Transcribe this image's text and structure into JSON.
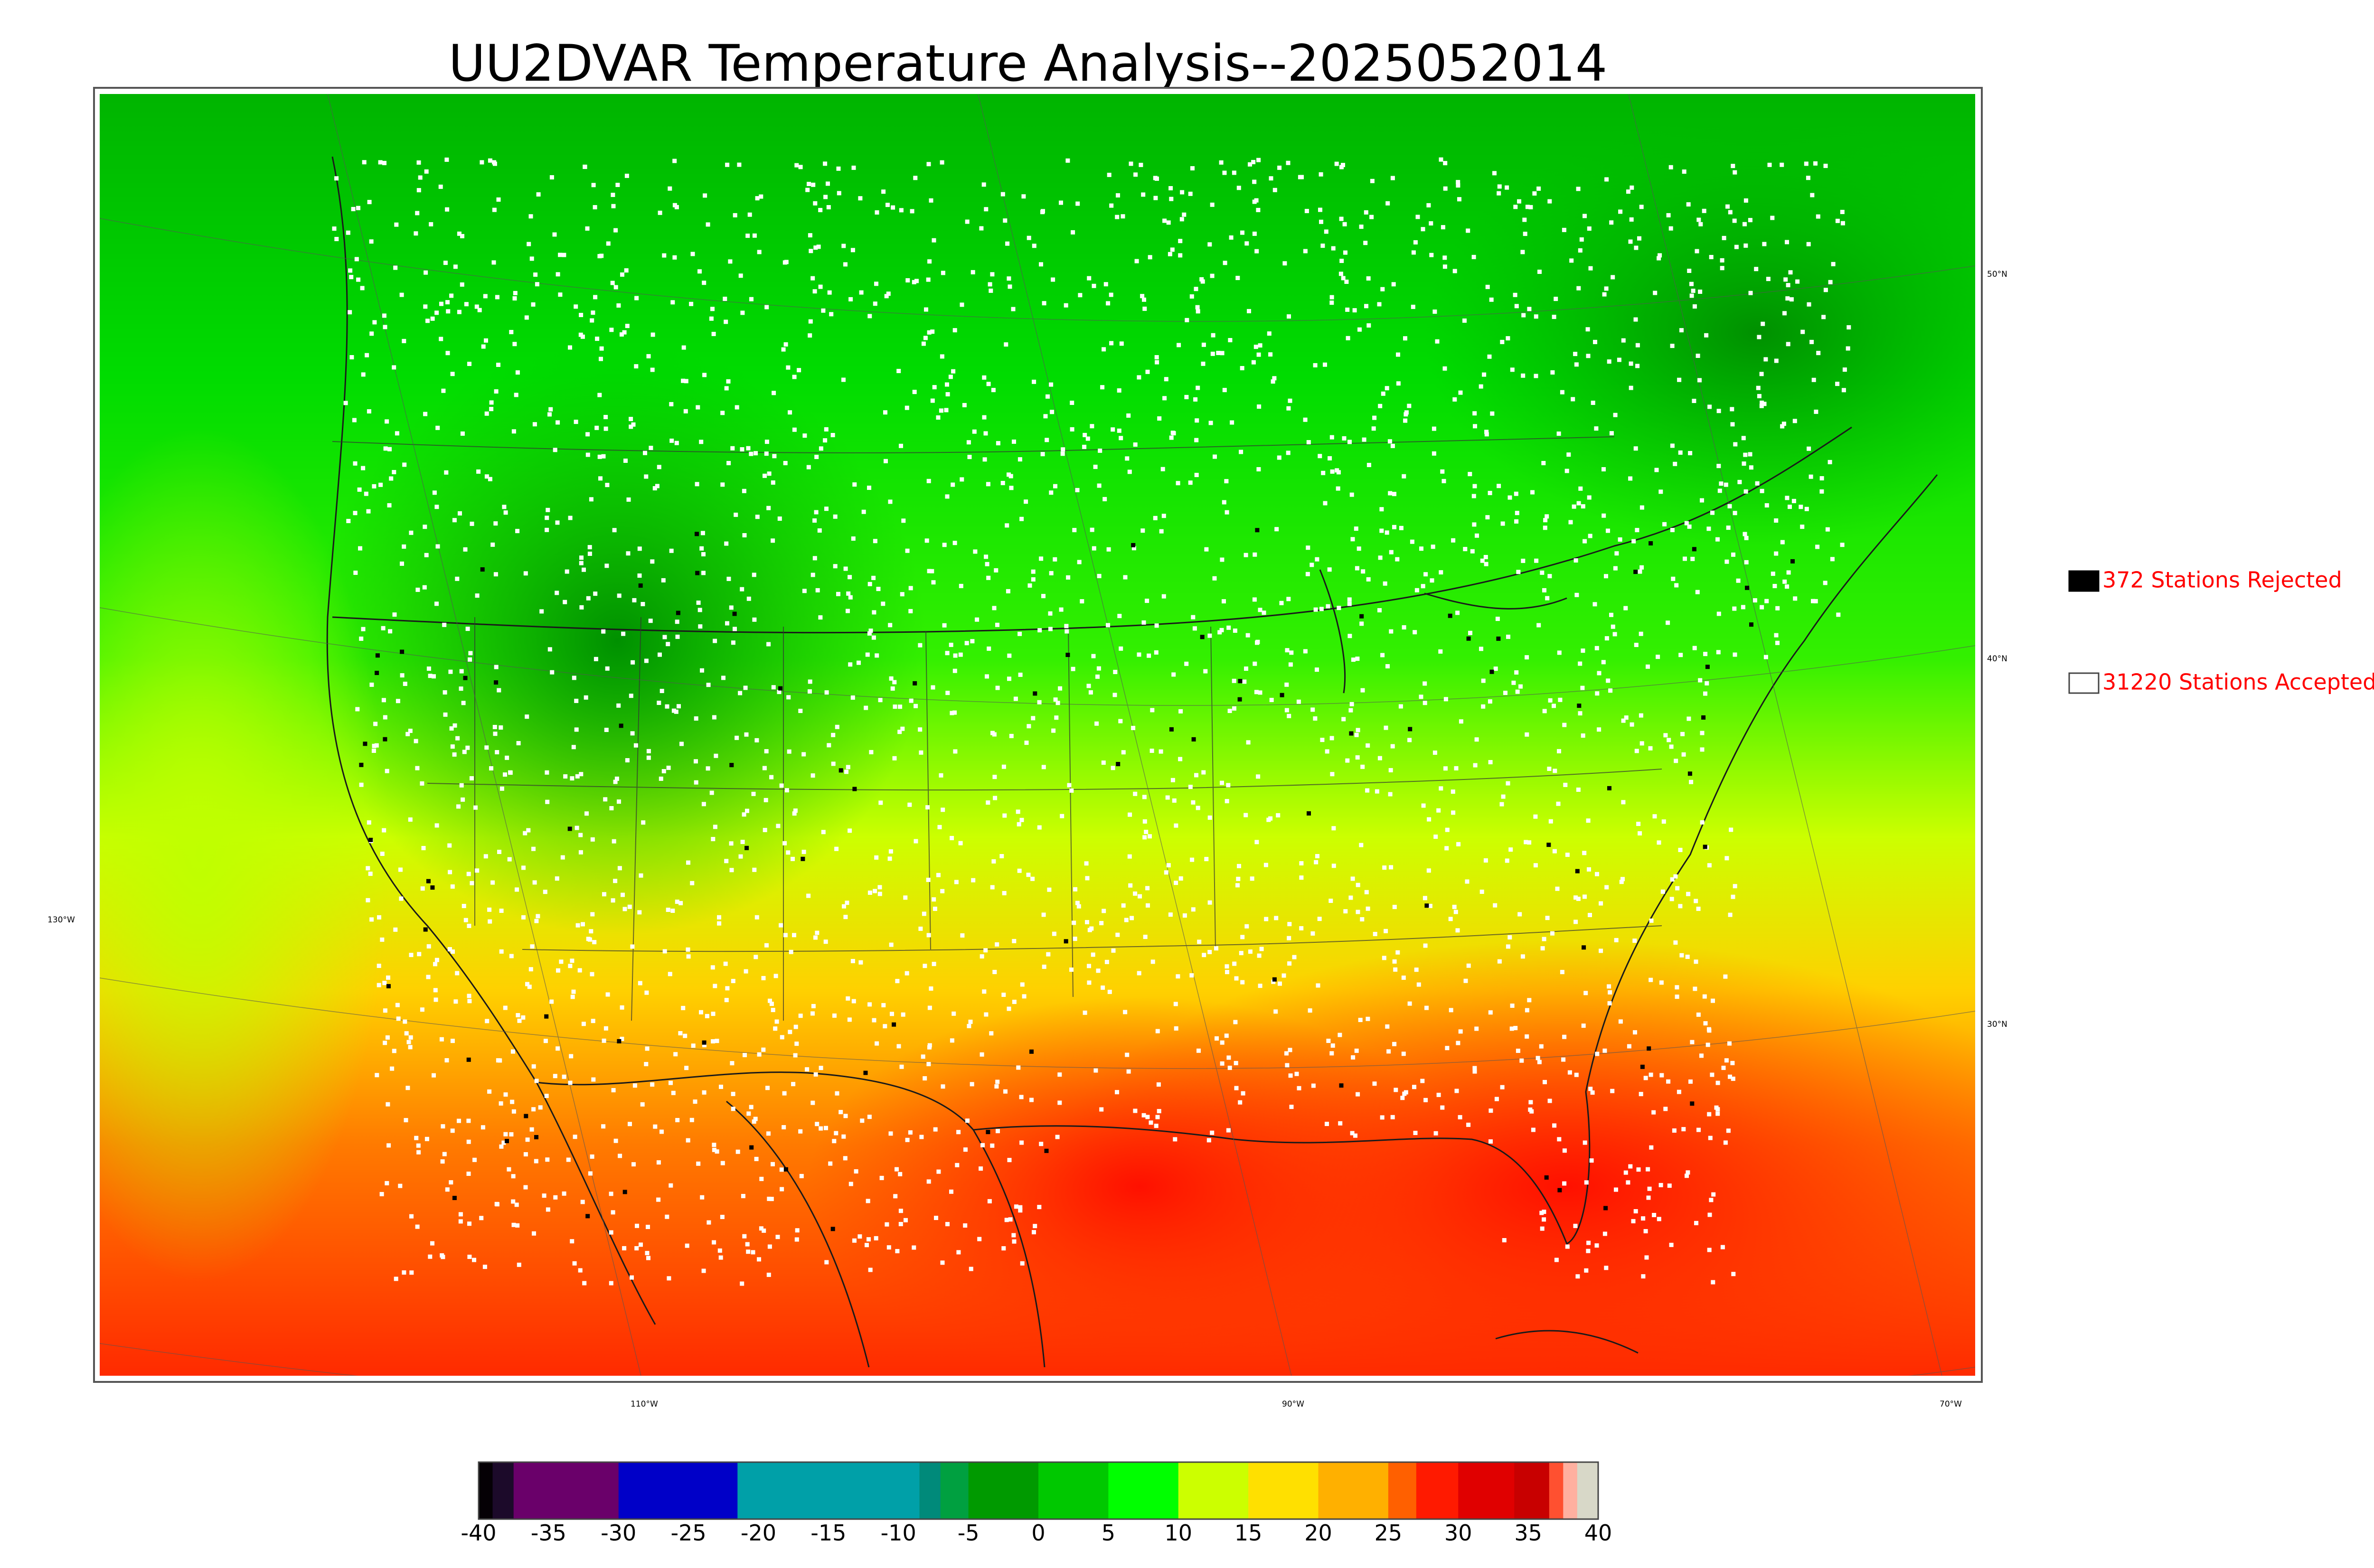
{
  "title": "UU2DVAR Temperature Analysis--2025052014",
  "legend": {
    "rejected": {
      "label": "372 Stations Rejected",
      "swatch_color": "#000000"
    },
    "accepted": {
      "label": "31220 Stations Accepted",
      "swatch_color": "#ffffff"
    },
    "text_color": "#ff0000"
  },
  "graticule": {
    "lat_labels": [
      "50°N",
      "40°N",
      "30°N"
    ],
    "lon_labels": [
      "130°W",
      "110°W",
      "90°W",
      "70°W"
    ]
  },
  "colorbar": {
    "min": -40,
    "max": 40,
    "tick_labels": [
      "-40",
      "-35",
      "-30",
      "-25",
      "-20",
      "-15",
      "-10",
      "-5",
      "0",
      "5",
      "10",
      "15",
      "20",
      "25",
      "30",
      "35",
      "40"
    ],
    "segments": [
      {
        "from": -40,
        "to": -39,
        "color": "#050005"
      },
      {
        "from": -39,
        "to": -37.5,
        "color": "#1c0a2a"
      },
      {
        "from": -37.5,
        "to": -30,
        "color": "#6a006a"
      },
      {
        "from": -30,
        "to": -21.5,
        "color": "#0000c8"
      },
      {
        "from": -21.5,
        "to": -8.5,
        "color": "#00a0a8"
      },
      {
        "from": -8.5,
        "to": -7,
        "color": "#008a7a"
      },
      {
        "from": -7,
        "to": -5,
        "color": "#00a040"
      },
      {
        "from": -5,
        "to": 0,
        "color": "#009a00"
      },
      {
        "from": 0,
        "to": 5,
        "color": "#00c800"
      },
      {
        "from": 5,
        "to": 10,
        "color": "#00ff00"
      },
      {
        "from": 10,
        "to": 15,
        "color": "#ccff00"
      },
      {
        "from": 15,
        "to": 20,
        "color": "#ffe000"
      },
      {
        "from": 20,
        "to": 25,
        "color": "#ffb000"
      },
      {
        "from": 25,
        "to": 27,
        "color": "#ff6000"
      },
      {
        "from": 27,
        "to": 30,
        "color": "#ff1a00"
      },
      {
        "from": 30,
        "to": 34,
        "color": "#e00000"
      },
      {
        "from": 34,
        "to": 36.5,
        "color": "#c80000"
      },
      {
        "from": 36.5,
        "to": 37.5,
        "color": "#ff5030"
      },
      {
        "from": 37.5,
        "to": 38.5,
        "color": "#ffb0a0"
      },
      {
        "from": 38.5,
        "to": 40,
        "color": "#d8d8c8"
      }
    ]
  },
  "temperature_colors": {
    "cold": "#00a800",
    "cool": "#00e000",
    "mild": "#ccff00",
    "warm": "#ffcc00",
    "hot": "#ff6000",
    "very_hot": "#ff1a00"
  }
}
